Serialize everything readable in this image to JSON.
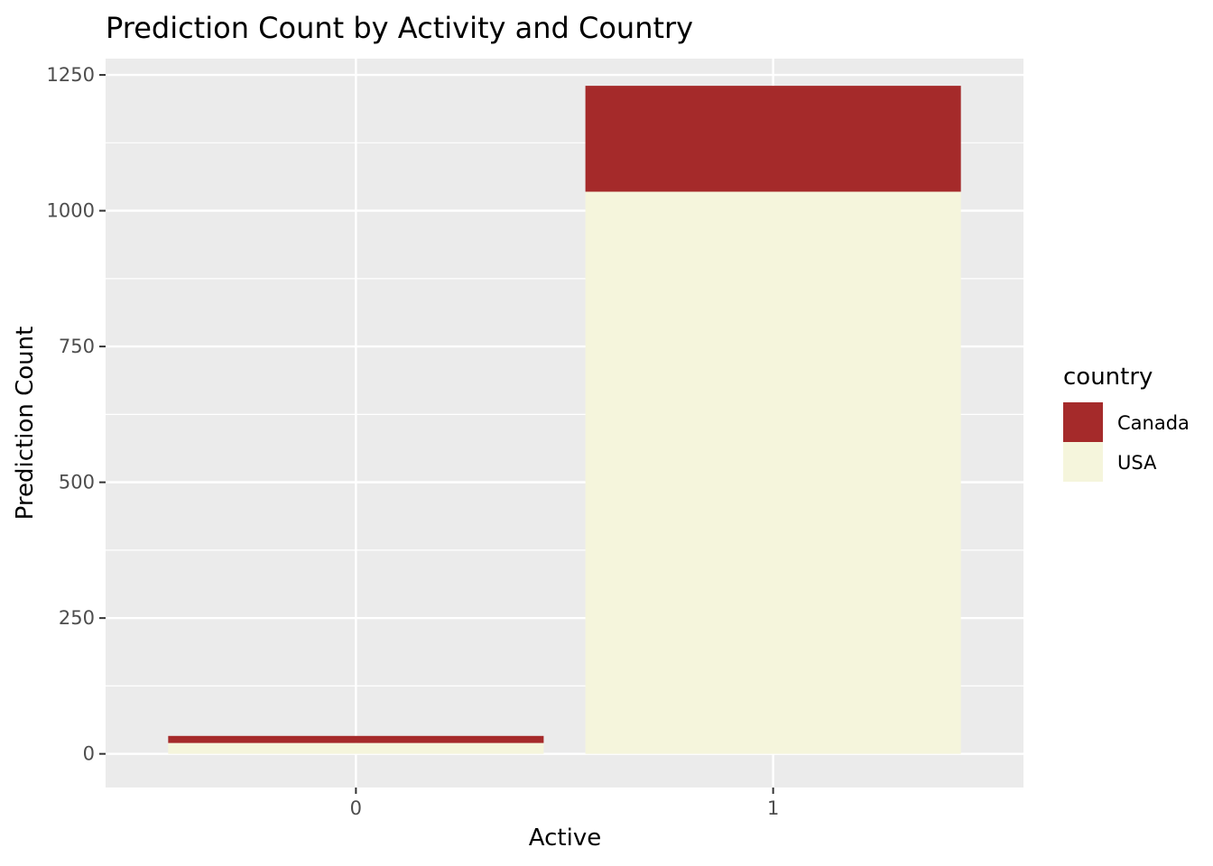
{
  "chart_data": {
    "type": "bar",
    "stacked": true,
    "title": "Prediction Count by Activity and Country",
    "xlabel": "Active",
    "ylabel": "Prediction Count",
    "categories": [
      "0",
      "1"
    ],
    "series": [
      {
        "name": "USA",
        "color": "#f5f5dc",
        "values": [
          20,
          1035
        ]
      },
      {
        "name": "Canada",
        "color": "#a52a2a",
        "values": [
          13,
          195
        ]
      }
    ],
    "ylim": [
      -62,
      1280
    ],
    "yticks": [
      0,
      250,
      500,
      750,
      1000,
      1250
    ],
    "grid": true,
    "panel_background": "#ebebeb",
    "legend": {
      "title": "country",
      "position": "right",
      "entries": [
        {
          "label": "Canada",
          "color": "#a52a2a"
        },
        {
          "label": "USA",
          "color": "#f5f5dc"
        }
      ]
    }
  }
}
